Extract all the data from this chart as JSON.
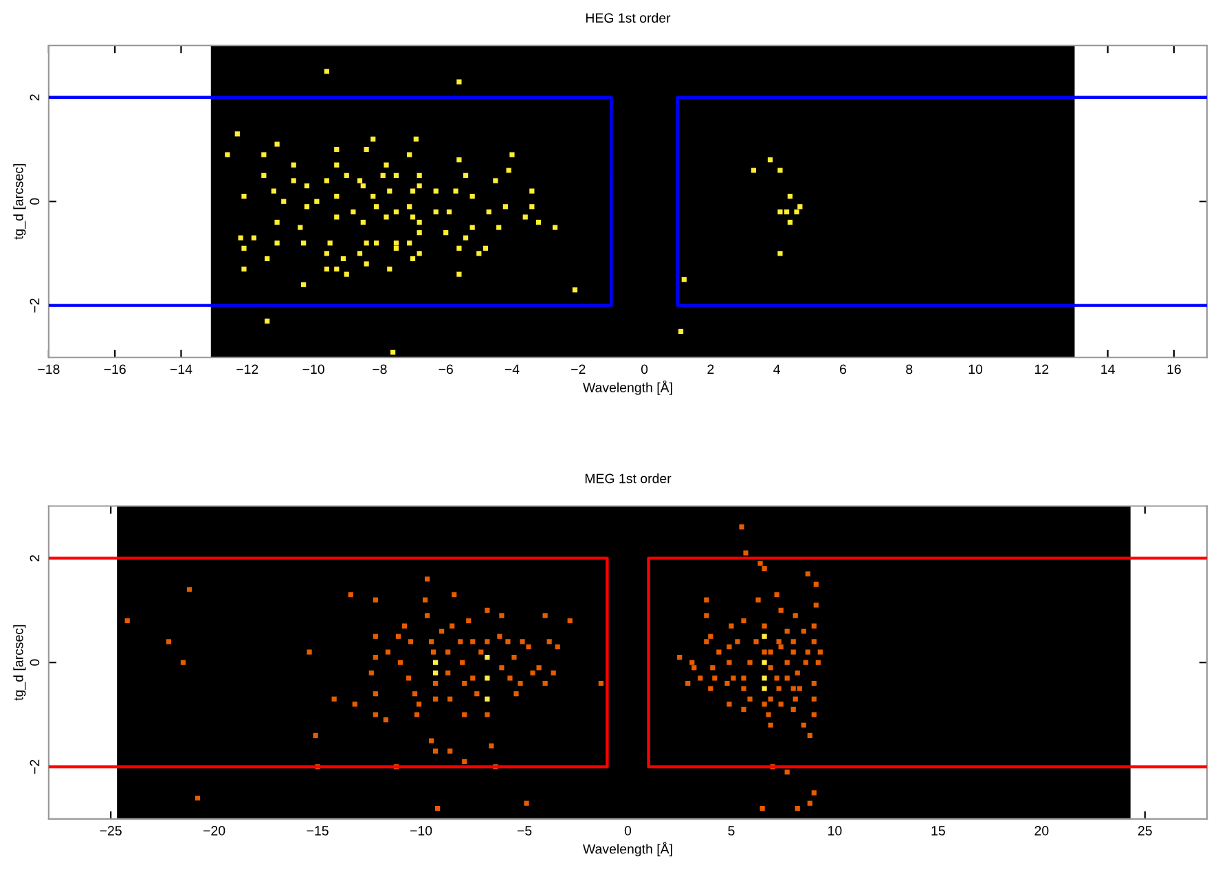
{
  "chart_data": [
    {
      "type": "scatter",
      "title": "HEG 1st order",
      "xlabel": "Wavelength [Å]",
      "ylabel": "tg_d [arcsec]",
      "marker": "square",
      "grid": false,
      "legend": false,
      "xlim": [
        -18,
        17
      ],
      "ylim": [
        -3,
        3
      ],
      "xticks": [
        {
          "value": -18,
          "label": "−18"
        },
        {
          "value": -16,
          "label": "−16"
        },
        {
          "value": -14,
          "label": "−14"
        },
        {
          "value": -12,
          "label": "−12"
        },
        {
          "value": -10,
          "label": "−10"
        },
        {
          "value": -8,
          "label": "−8"
        },
        {
          "value": -6,
          "label": "−6"
        },
        {
          "value": -4,
          "label": "−4"
        },
        {
          "value": -2,
          "label": "−2"
        },
        0,
        2,
        4,
        6,
        8,
        10,
        12,
        14,
        16
      ],
      "yticks": [
        {
          "value": -2,
          "label": "−2"
        },
        0,
        2
      ],
      "bands": [
        {
          "axis": "x",
          "from": -13.1,
          "to": 13,
          "color": "#000000"
        }
      ],
      "series": [
        {
          "color": "#ffee33",
          "x": [
            -9.6,
            -5.6,
            -12.3,
            -11.1,
            -8.2,
            -6.9,
            -12.6,
            -11.5,
            -9.3,
            -8.4,
            -7.1,
            -4.0,
            -5.6,
            -10.6,
            -9.3,
            -11.5,
            -9.0,
            -8.6,
            -7.9,
            -7.8,
            -7.5,
            -6.8,
            -5.4,
            -4.1,
            -10.6,
            -10.2,
            -9.6,
            -12.1,
            -11.2,
            -9.9,
            -9.3,
            -8.5,
            -8.2,
            -7.7,
            -7.0,
            -6.8,
            -6.3,
            -5.7,
            -5.2,
            -4.5,
            -3.4,
            -10.9,
            -10.2,
            -8.8,
            -8.1,
            -7.5,
            -7.1,
            -6.3,
            -5.9,
            -4.7,
            -4.2,
            -3.4,
            -3.6,
            -3.2,
            -11.1,
            -10.4,
            -9.3,
            -8.5,
            -7.8,
            -7.0,
            -6.8,
            -5.2,
            -4.4,
            -2.7,
            -12.2,
            -11.8,
            -11.1,
            -10.3,
            -9.5,
            -8.4,
            -8.1,
            -7.5,
            -7.1,
            -6.8,
            -6.0,
            -5.4,
            -12.1,
            -11.4,
            -9.6,
            -9.1,
            -8.6,
            -7.5,
            -7.0,
            -6.8,
            -5.6,
            -5.0,
            -4.8,
            -12.1,
            -9.6,
            -9.3,
            -9.0,
            -8.4,
            -7.7,
            -5.6,
            -10.3,
            -2.1,
            -11.4,
            -7.6,
            3.3,
            3.8,
            4.1,
            4.4,
            4.7,
            4.1,
            4.3,
            4.6,
            4.4,
            4.1,
            1.2,
            1.1
          ],
          "values": [
            2.5,
            2.3,
            1.3,
            1.1,
            1.2,
            1.2,
            0.9,
            0.9,
            1.0,
            1.0,
            0.9,
            0.9,
            0.8,
            0.7,
            0.7,
            0.5,
            0.5,
            0.4,
            0.5,
            0.7,
            0.5,
            0.5,
            0.5,
            0.6,
            0.4,
            0.3,
            0.4,
            0.1,
            0.2,
            0.0,
            0.1,
            0.3,
            0.1,
            0.2,
            0.2,
            0.3,
            0.2,
            0.2,
            0.1,
            0.4,
            0.2,
            0.0,
            -0.1,
            -0.2,
            -0.1,
            -0.2,
            -0.1,
            -0.2,
            -0.2,
            -0.2,
            -0.1,
            -0.1,
            -0.3,
            -0.4,
            -0.4,
            -0.5,
            -0.3,
            -0.4,
            -0.3,
            -0.3,
            -0.4,
            -0.5,
            -0.5,
            -0.5,
            -0.7,
            -0.7,
            -0.8,
            -0.8,
            -0.8,
            -0.8,
            -0.8,
            -0.8,
            -0.8,
            -0.6,
            -0.6,
            -0.7,
            -0.9,
            -1.1,
            -1.0,
            -1.1,
            -1.0,
            -0.9,
            -1.1,
            -1.0,
            -0.9,
            -1.0,
            -0.9,
            -1.3,
            -1.3,
            -1.3,
            -1.4,
            -1.2,
            -1.3,
            -1.4,
            -1.6,
            -1.7,
            -2.3,
            -2.9,
            0.6,
            0.8,
            0.6,
            0.1,
            -0.1,
            -0.2,
            -0.2,
            -0.2,
            -0.4,
            -1.0,
            -1.5,
            -2.5
          ]
        },
        {
          "type": "line",
          "color": "#0000ff",
          "line_style": "solid",
          "marker": "none",
          "x": [
            -18,
            -1,
            -1,
            -18
          ],
          "values": [
            2,
            2,
            -2,
            -2
          ]
        },
        {
          "type": "line",
          "color": "#0000ff",
          "line_style": "solid",
          "marker": "none",
          "x": [
            17,
            1,
            1,
            17
          ],
          "values": [
            2,
            2,
            -2,
            -2
          ]
        }
      ]
    },
    {
      "type": "scatter",
      "title": "MEG 1st order",
      "xlabel": "Wavelength [Å]",
      "ylabel": "tg_d [arcsec]",
      "marker": "square",
      "grid": false,
      "legend": false,
      "xlim": [
        -28,
        28
      ],
      "ylim": [
        -3,
        3
      ],
      "xticks": [
        {
          "value": -25,
          "label": "−25"
        },
        {
          "value": -20,
          "label": "−20"
        },
        {
          "value": -15,
          "label": "−15"
        },
        {
          "value": -10,
          "label": "−10"
        },
        {
          "value": -5,
          "label": "−5"
        },
        0,
        5,
        10,
        15,
        20,
        25
      ],
      "yticks": [
        {
          "value": -2,
          "label": "−2"
        },
        0,
        2
      ],
      "bands": [
        {
          "axis": "x",
          "from": -24.7,
          "to": 24.3,
          "color": "#000000"
        }
      ],
      "series": [
        {
          "color": "#e85c00",
          "x": [
            -21.2,
            -24.2,
            -22.2,
            -21.5,
            -15.4,
            -14.2,
            -15.1,
            -20.8,
            -13.4,
            -13.2,
            -12.2,
            -12.2,
            -12.2,
            -12.4,
            -12.2,
            -12.2,
            -11.7,
            -11.6,
            -11.1,
            -11.0,
            -10.8,
            -10.5,
            -10.6,
            -10.3,
            -10.2,
            -10.1,
            -9.7,
            -9.8,
            -9.7,
            -9.5,
            -9.4,
            -9.3,
            -9.3,
            -9.5,
            -9.3,
            -9.0,
            -8.7,
            -8.7,
            -8.6,
            -8.6,
            -8.4,
            -8.5,
            -8.1,
            -8.0,
            -7.9,
            -7.9,
            -7.9,
            -7.7,
            -7.5,
            -7.5,
            -7.3,
            -7.1,
            -6.8,
            -6.8,
            -6.8,
            -6.6,
            -6.4,
            -6.2,
            -6.1,
            -6.1,
            -5.8,
            -5.7,
            -5.5,
            -5.1,
            -5.2,
            -5.4,
            -4.8,
            -4.6,
            -4.3,
            -4.0,
            -4.0,
            -3.8,
            -3.6,
            -3.4,
            -2.8,
            -1.3,
            -4.9,
            -9.2,
            -11.2,
            -15.0,
            5.5,
            5.7,
            6.4,
            6.6,
            8.7,
            9.1,
            3.8,
            6.3,
            7.2,
            7.4,
            8.1,
            9.1,
            3.8,
            5.0,
            5.6,
            6.6,
            7.7,
            8.5,
            9.0,
            4.0,
            3.8,
            5.3,
            6.2,
            7.3,
            8.0,
            9.0,
            4.9,
            4.4,
            6.6,
            6.9,
            7.4,
            8.0,
            8.7,
            9.3,
            3.2,
            2.5,
            3.1,
            4.1,
            4.9,
            5.9,
            6.9,
            7.7,
            8.6,
            9.2,
            2.9,
            3.5,
            4.2,
            5.1,
            5.6,
            7.2,
            7.7,
            8.2,
            9.0,
            4.0,
            4.8,
            5.6,
            7.3,
            8.0,
            8.3,
            4.9,
            5.6,
            5.9,
            6.6,
            6.9,
            7.4,
            8.1,
            9.0,
            6.8,
            8.0,
            9.0,
            8.5,
            6.9,
            8.8,
            7.0,
            7.7,
            9.0,
            8.8,
            6.5,
            8.2
          ],
          "values": [
            1.4,
            0.8,
            0.4,
            0.0,
            0.2,
            -0.7,
            -1.4,
            -2.6,
            1.3,
            -0.8,
            1.2,
            0.5,
            0.1,
            -0.2,
            -0.6,
            -1.0,
            -1.1,
            0.2,
            0.5,
            0.0,
            0.7,
            0.4,
            -0.3,
            -0.6,
            -1.0,
            -0.8,
            1.6,
            1.2,
            0.9,
            0.4,
            0.2,
            -0.4,
            -0.7,
            -1.5,
            -1.7,
            0.6,
            0.2,
            -0.2,
            -0.7,
            -1.7,
            1.3,
            0.7,
            0.4,
            0.0,
            -0.4,
            -1.0,
            -1.9,
            0.8,
            0.4,
            -0.3,
            -0.6,
            0.2,
            1.0,
            0.4,
            -1.0,
            -1.6,
            -2.0,
            0.5,
            -0.1,
            0.9,
            0.4,
            -0.3,
            0.1,
            0.4,
            -0.4,
            -0.6,
            0.3,
            -0.2,
            -0.1,
            0.9,
            -0.4,
            0.4,
            -0.2,
            0.3,
            0.8,
            -0.4,
            -2.7,
            -2.8,
            -2.0,
            -2.0,
            2.6,
            2.1,
            1.9,
            1.8,
            1.7,
            1.5,
            1.2,
            1.2,
            1.3,
            1.0,
            0.9,
            1.1,
            0.9,
            0.7,
            0.8,
            0.7,
            0.6,
            0.6,
            0.7,
            0.5,
            0.4,
            0.4,
            0.4,
            0.4,
            0.4,
            0.4,
            0.3,
            0.2,
            0.2,
            0.2,
            0.3,
            0.2,
            0.2,
            0.2,
            -0.1,
            0.1,
            0.0,
            -0.1,
            0.0,
            0.0,
            -0.1,
            0.0,
            0.0,
            0.0,
            -0.4,
            -0.3,
            -0.3,
            -0.3,
            -0.3,
            -0.3,
            -0.3,
            -0.2,
            -0.4,
            -0.5,
            -0.4,
            -0.5,
            -0.5,
            -0.5,
            -0.5,
            -0.8,
            -0.9,
            -0.7,
            -0.8,
            -0.7,
            -0.8,
            -0.7,
            -0.7,
            -1.0,
            -0.9,
            -1.0,
            -1.2,
            -1.2,
            -1.4,
            -2.0,
            -2.1,
            -2.5,
            -2.7,
            -2.8,
            -2.8
          ]
        },
        {
          "color": "#ffee44",
          "x": [
            -9.3,
            -9.3,
            -6.8,
            -6.8,
            -6.8,
            6.6,
            6.6,
            6.6,
            6.6
          ],
          "values": [
            0.0,
            -0.2,
            0.1,
            -0.3,
            -0.7,
            0.5,
            0.0,
            -0.3,
            -0.5
          ]
        },
        {
          "type": "line",
          "color": "#ff0000",
          "line_style": "solid",
          "marker": "none",
          "x": [
            -28,
            -1,
            -1,
            -28
          ],
          "values": [
            2,
            2,
            -2,
            -2
          ]
        },
        {
          "type": "line",
          "color": "#ff0000",
          "line_style": "solid",
          "marker": "none",
          "x": [
            28,
            1,
            1,
            28
          ],
          "values": [
            2,
            2,
            -2,
            -2
          ]
        }
      ]
    }
  ]
}
